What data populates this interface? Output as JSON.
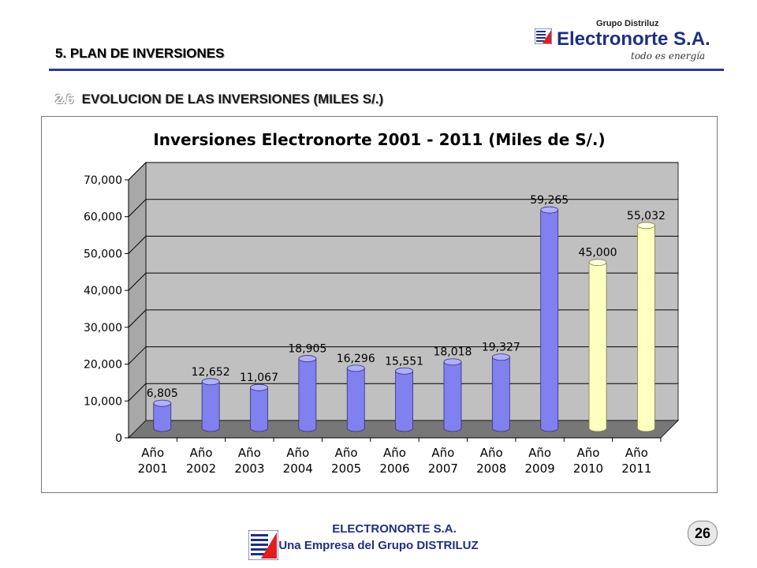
{
  "header": {
    "section_title": "5.  PLAN DE INVERSIONES",
    "subsection_number": "2.6",
    "subsection_title": "EVOLUCION DE LAS INVERSIONES (MILES S/.)"
  },
  "logo": {
    "group": "Grupo Distriluz",
    "brand": "Electronorte S.A.",
    "tagline": "todo es energía"
  },
  "footer": {
    "company": "ELECTRONORTE  S.A.",
    "tagline": "Una Empresa del Grupo DISTRILUZ",
    "page_number": "26"
  },
  "colors": {
    "accent": "#2e3a87",
    "bar_blue": "#8080ee",
    "bar_yellow": "#ffffc0",
    "wall": "#c0c0c0",
    "floor": "#777777"
  },
  "chart_data": {
    "type": "bar",
    "title": "Inversiones Electronorte 2001 - 2011 (Miles de S/.)",
    "xlabel": "",
    "ylabel": "",
    "ylim": [
      0,
      70000
    ],
    "yticks": [
      "0",
      "10,000",
      "20,000",
      "30,000",
      "40,000",
      "50,000",
      "60,000",
      "70,000"
    ],
    "grid": true,
    "categories": [
      [
        "Año",
        "2001"
      ],
      [
        "Año",
        "2002"
      ],
      [
        "Año",
        "2003"
      ],
      [
        "Año",
        "2004"
      ],
      [
        "Año",
        "2005"
      ],
      [
        "Año",
        "2006"
      ],
      [
        "Año",
        "2007"
      ],
      [
        "Año",
        "2008"
      ],
      [
        "Año",
        "2009"
      ],
      [
        "Año",
        "2010"
      ],
      [
        "Año",
        "2011"
      ]
    ],
    "values": [
      6805,
      12652,
      11067,
      18905,
      16296,
      15551,
      18018,
      19327,
      59265,
      45000,
      55032
    ],
    "value_labels": [
      "6,805",
      "12,652",
      "11,067",
      "18,905",
      "16,296",
      "15,551",
      "18,018",
      "19,327",
      "59,265",
      "45,000",
      "55,032"
    ],
    "bar_colors": [
      "blue",
      "blue",
      "blue",
      "blue",
      "blue",
      "blue",
      "blue",
      "blue",
      "blue",
      "yellow",
      "yellow"
    ]
  }
}
